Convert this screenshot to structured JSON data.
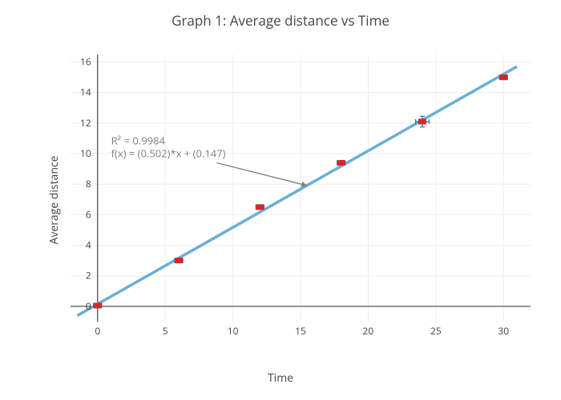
{
  "chart": {
    "type": "scatter-with-fit",
    "title": "Graph 1: Average distance vs Time",
    "xlabel": "Time",
    "ylabel": "Average distance",
    "title_fontsize": 17,
    "label_fontsize": 14,
    "tick_fontsize": 12,
    "background_color": "#ffffff",
    "grid_color": "#eeeeee",
    "axis_color": "#444444",
    "text_color": "#444444",
    "xlim": [
      -2,
      32
    ],
    "ylim": [
      -1,
      16.5
    ],
    "xticks": [
      0,
      5,
      10,
      15,
      20,
      25,
      30
    ],
    "yticks": [
      0,
      2,
      4,
      6,
      8,
      10,
      12,
      14,
      16
    ],
    "scatter": {
      "x": [
        0,
        6,
        12,
        18,
        24,
        30
      ],
      "y": [
        0.05,
        3.0,
        6.5,
        9.4,
        12.1,
        15.0
      ],
      "marker_color": "#d62728",
      "error_color": "#1f77b4",
      "marker_w": 10,
      "marker_h": 7,
      "x_err": [
        0.3,
        0.3,
        0.3,
        0.3,
        0.5,
        0.3
      ],
      "y_err": [
        0.15,
        0.15,
        0.15,
        0.15,
        0.35,
        0.15
      ]
    },
    "fit_line": {
      "slope": 0.502,
      "intercept": 0.147,
      "x0": -1.5,
      "x1": 31,
      "color": "#6baed6",
      "width": 3.5
    },
    "annotation": {
      "line1": "R² = 0.9984",
      "line2": "f(x) = (0.502)*x + (0.147)",
      "text_x_data": 1,
      "text_y_data": 10.6,
      "arrow_to_x_data": 15.5,
      "arrow_to_y_data": 7.9,
      "arrow_from_x_data": 8.8,
      "arrow_from_y_data": 9.4,
      "color": "#808080",
      "fontsize": 13
    }
  }
}
